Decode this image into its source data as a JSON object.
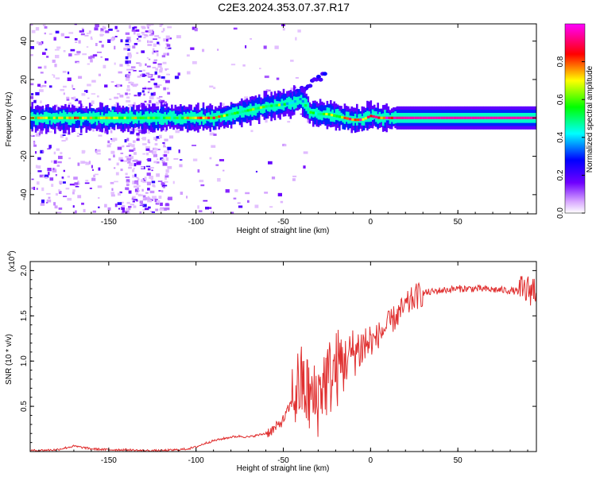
{
  "title": "C2E3.2024.353.07.37.R17",
  "chart_data": [
    {
      "type": "heatmap",
      "title": "C2E3.2024.353.07.37.R17",
      "xlabel": "Height of straight line (km)",
      "ylabel": "Frequency (Hz)",
      "xlim": [
        -195,
        95
      ],
      "ylim": [
        -50,
        49
      ],
      "x_ticks": [
        -150,
        -100,
        -50,
        0,
        50
      ],
      "y_ticks": [
        -40,
        -20,
        0,
        20,
        40
      ],
      "x_tick_labels": [
        "-150",
        "-100",
        "-50",
        "0",
        "50"
      ],
      "y_tick_labels": [
        "-40",
        "-20",
        "0",
        "20",
        "40"
      ],
      "colorbar": {
        "label": "Normalized spectral amplitude",
        "range": [
          0,
          1
        ],
        "ticks": [
          0.0,
          0.2,
          0.4,
          0.6,
          0.8
        ],
        "tick_labels": [
          "0.0",
          "0.2",
          "0.4",
          "0.6",
          "0.8"
        ],
        "colors": [
          "#ffffff",
          "#c878ff",
          "#5000ff",
          "#0000ff",
          "#00ffff",
          "#00ff00",
          "#ffff00",
          "#ff0000",
          "#ff00ff"
        ]
      },
      "ridge": {
        "x": [
          -195,
          -170,
          -150,
          -130,
          -115,
          -100,
          -90,
          -80,
          -70,
          -60,
          -50,
          -45,
          -40,
          -35,
          -30,
          -25,
          -20,
          -15,
          -10,
          -5,
          0,
          5,
          10,
          20,
          50,
          95
        ],
        "frequency": [
          0,
          0,
          0,
          0,
          0,
          0,
          0,
          2,
          4,
          6,
          7,
          8,
          10,
          3,
          2,
          2,
          1,
          0,
          -1,
          -1,
          1,
          0,
          0,
          0,
          0,
          0
        ],
        "amplitude": [
          0.6,
          0.7,
          0.6,
          0.65,
          0.55,
          0.7,
          0.75,
          0.55,
          0.6,
          0.6,
          0.5,
          0.45,
          0.4,
          0.45,
          0.55,
          0.6,
          0.65,
          0.8,
          0.85,
          0.85,
          0.8,
          0.85,
          0.9,
          0.95,
          0.95,
          0.95
        ]
      },
      "upper_branch": {
        "x": [
          -40,
          -35,
          -30,
          -27,
          -25
        ],
        "frequency": [
          14,
          17,
          20,
          23,
          26
        ]
      }
    },
    {
      "type": "line",
      "xlabel": "Height of straight line (km)",
      "ylabel": "SNR (10 * v/v)",
      "y_exponent_label": "(x10",
      "y_exponent": "4",
      "xlim": [
        -195,
        95
      ],
      "ylim": [
        0,
        2.1
      ],
      "x_ticks": [
        -150,
        -100,
        -50,
        0,
        50
      ],
      "y_ticks": [
        0.5,
        1.0,
        1.5,
        2.0
      ],
      "x_tick_labels": [
        "-150",
        "-100",
        "-50",
        "0",
        "50"
      ],
      "y_tick_labels": [
        "0.5",
        "1.0",
        "1.5",
        "2.0"
      ],
      "color": "#e03030",
      "x": [
        -195,
        -180,
        -170,
        -160,
        -150,
        -140,
        -130,
        -120,
        -110,
        -105,
        -100,
        -95,
        -90,
        -85,
        -80,
        -75,
        -70,
        -65,
        -60,
        -55,
        -50,
        -45,
        -42,
        -40,
        -38,
        -35,
        -32,
        -30,
        -28,
        -25,
        -22,
        -20,
        -18,
        -15,
        -12,
        -10,
        -8,
        -5,
        -2,
        0,
        3,
        5,
        8,
        10,
        15,
        20,
        25,
        30,
        40,
        50,
        60,
        70,
        80,
        85,
        90,
        95
      ],
      "y": [
        0.01,
        0.02,
        0.06,
        0.03,
        0.02,
        0.02,
        0.01,
        0.01,
        0.02,
        0.03,
        0.05,
        0.09,
        0.12,
        0.14,
        0.16,
        0.17,
        0.16,
        0.18,
        0.2,
        0.25,
        0.35,
        0.55,
        0.7,
        0.75,
        0.7,
        0.6,
        0.55,
        0.6,
        0.75,
        0.8,
        0.85,
        0.9,
        0.95,
        1.0,
        1.05,
        1.1,
        1.12,
        1.15,
        1.2,
        1.2,
        1.25,
        1.3,
        1.35,
        1.4,
        1.5,
        1.6,
        1.7,
        1.75,
        1.78,
        1.8,
        1.8,
        1.79,
        1.78,
        1.77,
        1.78,
        1.8
      ]
    }
  ]
}
